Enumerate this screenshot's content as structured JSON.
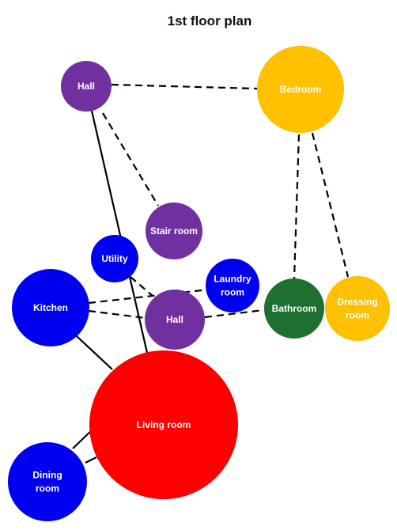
{
  "title": "1st floor plan",
  "colors": {
    "purple": "#7030A0",
    "gold": "#FFC000",
    "blue": "#0000F0",
    "green": "#1E7030",
    "red": "#FF0000",
    "edge": "#000000",
    "label": "#FFFFFF"
  },
  "nodes": {
    "hall_top": {
      "lines": [
        "Hall"
      ],
      "color": "#7030A0"
    },
    "bedroom": {
      "lines": [
        "Bedroom"
      ],
      "color": "#FFC000"
    },
    "stair_room": {
      "lines": [
        "Stair room"
      ],
      "color": "#7030A0"
    },
    "utility": {
      "lines": [
        "Utility"
      ],
      "color": "#0000F0"
    },
    "laundry": {
      "lines": [
        "Laundry",
        "room"
      ],
      "color": "#0000F0"
    },
    "kitchen": {
      "lines": [
        "Kitchen"
      ],
      "color": "#0000F0"
    },
    "hall_mid": {
      "lines": [
        "Hall"
      ],
      "color": "#7030A0"
    },
    "bathroom": {
      "lines": [
        "Bathroom"
      ],
      "color": "#1E7030"
    },
    "dressing": {
      "lines": [
        "Dressing",
        "room"
      ],
      "color": "#FFC000"
    },
    "living": {
      "lines": [
        "Living room"
      ],
      "color": "#FF0000"
    },
    "dining": {
      "lines": [
        "Dining",
        "room"
      ],
      "color": "#0000F0"
    }
  },
  "edges": [
    {
      "from": "hall_top",
      "to": "bedroom",
      "style": "dashed"
    },
    {
      "from": "hall_top",
      "to": "stair_room",
      "style": "dashed"
    },
    {
      "from": "hall_top",
      "to": "living",
      "style": "solid"
    },
    {
      "from": "bedroom",
      "to": "bathroom",
      "style": "dashed"
    },
    {
      "from": "bedroom",
      "to": "dressing",
      "style": "dashed"
    },
    {
      "from": "utility",
      "to": "hall_mid",
      "style": "dashed"
    },
    {
      "from": "kitchen",
      "to": "laundry",
      "style": "dashed"
    },
    {
      "from": "kitchen",
      "to": "hall_mid",
      "style": "dashed"
    },
    {
      "from": "hall_mid",
      "to": "bathroom",
      "style": "dashed"
    },
    {
      "from": "kitchen",
      "to": "living",
      "style": "solid"
    },
    {
      "from": "dining",
      "to": "living",
      "style": "solid"
    }
  ]
}
